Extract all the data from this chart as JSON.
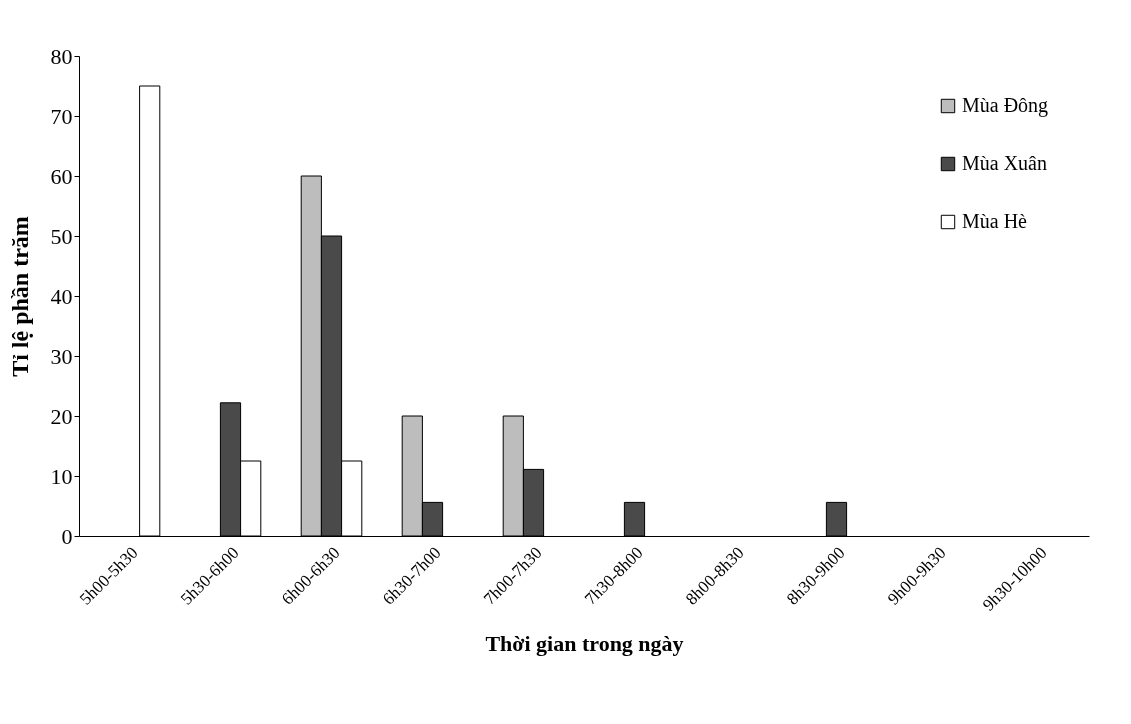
{
  "chart_data": {
    "type": "bar",
    "xlabel": "Thời gian trong ngày",
    "ylabel": "Tỉ lệ phần trăm",
    "categories": [
      "5h00-5h30",
      "5h30-6h00",
      "6h00-6h30",
      "6h30-7h00",
      "7h00-7h30",
      "7h30-8h00",
      "8h00-8h30",
      "8h30-9h00",
      "9h00-9h30",
      "9h30-10h00"
    ],
    "series": [
      {
        "name": "Mùa Đông",
        "color": "#bdbdbd",
        "values": [
          null,
          null,
          60,
          20,
          20,
          null,
          null,
          null,
          null,
          null
        ]
      },
      {
        "name": "Mùa Xuân",
        "color": "#4a4a4a",
        "values": [
          null,
          22.2,
          50,
          5.6,
          11.1,
          5.6,
          null,
          5.6,
          null,
          null
        ]
      },
      {
        "name": "Mùa Hè",
        "color": "#ffffff",
        "values": [
          75,
          12.5,
          12.5,
          null,
          null,
          null,
          null,
          null,
          null,
          null
        ]
      }
    ],
    "ylim": [
      0,
      80
    ],
    "yticks": [
      0,
      10,
      20,
      30,
      40,
      50,
      60,
      70,
      80
    ],
    "grid": false,
    "legend": "top right"
  }
}
